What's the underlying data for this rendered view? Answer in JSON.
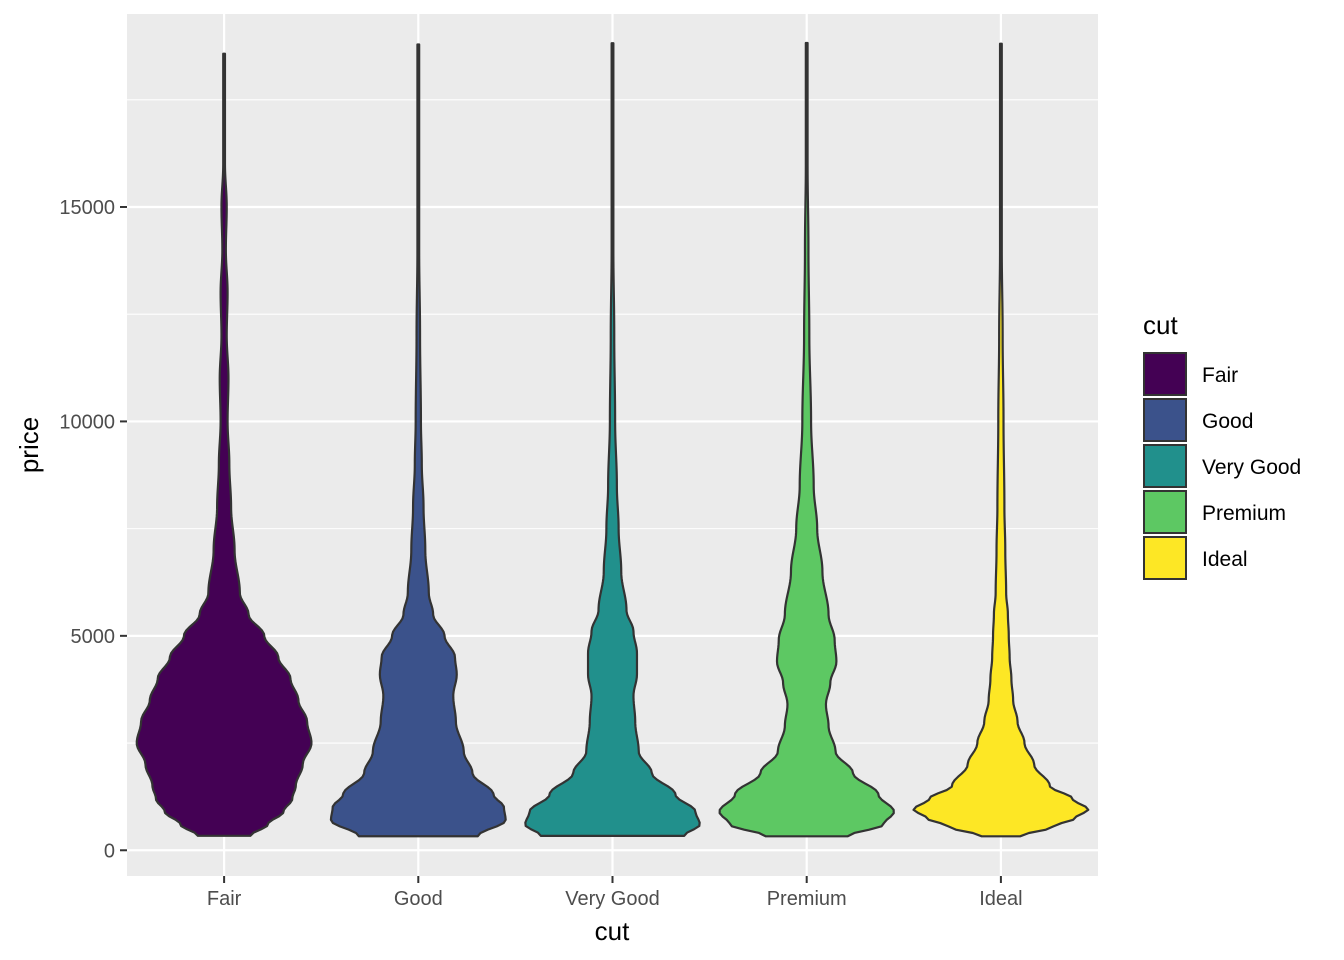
{
  "chart_data": {
    "type": "violin",
    "xlabel": "cut",
    "ylabel": "price",
    "categories": [
      "Fair",
      "Good",
      "Very Good",
      "Premium",
      "Ideal"
    ],
    "ylim": [
      -600,
      19500
    ],
    "yticks": [
      0,
      5000,
      10000,
      15000
    ],
    "ytick_labels": [
      "0",
      "5000",
      "10000",
      "15000"
    ],
    "grid": true,
    "legend": {
      "title": "cut",
      "position": "right",
      "entries": [
        "Fair",
        "Good",
        "Very Good",
        "Premium",
        "Ideal"
      ]
    },
    "series": [
      {
        "category": "Fair",
        "color": "#440154",
        "min": 337,
        "max": 18574,
        "density": [
          [
            337,
            0.3
          ],
          [
            600,
            0.5
          ],
          [
            900,
            0.68
          ],
          [
            1200,
            0.78
          ],
          [
            1500,
            0.82
          ],
          [
            2000,
            0.9
          ],
          [
            2500,
            1.0
          ],
          [
            3000,
            0.95
          ],
          [
            3500,
            0.85
          ],
          [
            4000,
            0.76
          ],
          [
            4500,
            0.62
          ],
          [
            5000,
            0.46
          ],
          [
            5500,
            0.28
          ],
          [
            6000,
            0.18
          ],
          [
            7000,
            0.12
          ],
          [
            8000,
            0.08
          ],
          [
            9000,
            0.06
          ],
          [
            10000,
            0.04
          ],
          [
            11000,
            0.05
          ],
          [
            12000,
            0.03
          ],
          [
            13000,
            0.04
          ],
          [
            14000,
            0.02
          ],
          [
            15000,
            0.03
          ],
          [
            16000,
            0.01
          ],
          [
            17000,
            0.01
          ],
          [
            18574,
            0.01
          ]
        ]
      },
      {
        "category": "Good",
        "color": "#3b528b",
        "min": 327,
        "max": 18788,
        "density": [
          [
            327,
            0.68
          ],
          [
            700,
            1.0
          ],
          [
            1000,
            0.98
          ],
          [
            1300,
            0.86
          ],
          [
            1800,
            0.62
          ],
          [
            2300,
            0.52
          ],
          [
            3000,
            0.43
          ],
          [
            3600,
            0.4
          ],
          [
            4100,
            0.44
          ],
          [
            4500,
            0.42
          ],
          [
            5000,
            0.3
          ],
          [
            5500,
            0.17
          ],
          [
            6000,
            0.12
          ],
          [
            7000,
            0.08
          ],
          [
            8000,
            0.06
          ],
          [
            9000,
            0.04
          ],
          [
            10000,
            0.03
          ],
          [
            12000,
            0.02
          ],
          [
            14000,
            0.01
          ],
          [
            16000,
            0.01
          ],
          [
            18788,
            0.01
          ]
        ]
      },
      {
        "category": "Very Good",
        "color": "#21908c",
        "min": 336,
        "max": 18818,
        "density": [
          [
            336,
            0.82
          ],
          [
            600,
            1.0
          ],
          [
            900,
            0.95
          ],
          [
            1300,
            0.72
          ],
          [
            1800,
            0.45
          ],
          [
            2300,
            0.3
          ],
          [
            3000,
            0.26
          ],
          [
            3600,
            0.24
          ],
          [
            4100,
            0.28
          ],
          [
            4600,
            0.28
          ],
          [
            5100,
            0.24
          ],
          [
            5600,
            0.16
          ],
          [
            6500,
            0.1
          ],
          [
            7500,
            0.07
          ],
          [
            8500,
            0.05
          ],
          [
            10000,
            0.03
          ],
          [
            12000,
            0.02
          ],
          [
            14000,
            0.01
          ],
          [
            16000,
            0.01
          ],
          [
            18818,
            0.01
          ]
        ]
      },
      {
        "category": "Premium",
        "color": "#5dc863",
        "min": 326,
        "max": 18823,
        "density": [
          [
            326,
            0.47
          ],
          [
            600,
            0.88
          ],
          [
            900,
            1.0
          ],
          [
            1300,
            0.82
          ],
          [
            1800,
            0.53
          ],
          [
            2300,
            0.33
          ],
          [
            2900,
            0.25
          ],
          [
            3400,
            0.22
          ],
          [
            3900,
            0.27
          ],
          [
            4400,
            0.34
          ],
          [
            4900,
            0.32
          ],
          [
            5500,
            0.25
          ],
          [
            6500,
            0.18
          ],
          [
            7500,
            0.12
          ],
          [
            8500,
            0.08
          ],
          [
            10000,
            0.05
          ],
          [
            12000,
            0.03
          ],
          [
            14000,
            0.02
          ],
          [
            16000,
            0.01
          ],
          [
            18823,
            0.01
          ]
        ]
      },
      {
        "category": "Ideal",
        "color": "#fde725",
        "min": 326,
        "max": 18806,
        "density": [
          [
            326,
            0.22
          ],
          [
            550,
            0.6
          ],
          [
            750,
            0.85
          ],
          [
            950,
            1.0
          ],
          [
            1200,
            0.82
          ],
          [
            1500,
            0.56
          ],
          [
            2000,
            0.38
          ],
          [
            2500,
            0.27
          ],
          [
            3000,
            0.19
          ],
          [
            3500,
            0.14
          ],
          [
            4000,
            0.12
          ],
          [
            4500,
            0.1
          ],
          [
            5000,
            0.09
          ],
          [
            5500,
            0.08
          ],
          [
            6000,
            0.06
          ],
          [
            7000,
            0.05
          ],
          [
            8000,
            0.04
          ],
          [
            10000,
            0.03
          ],
          [
            12000,
            0.02
          ],
          [
            14000,
            0.01
          ],
          [
            16000,
            0.01
          ],
          [
            18806,
            0.01
          ]
        ]
      }
    ]
  }
}
